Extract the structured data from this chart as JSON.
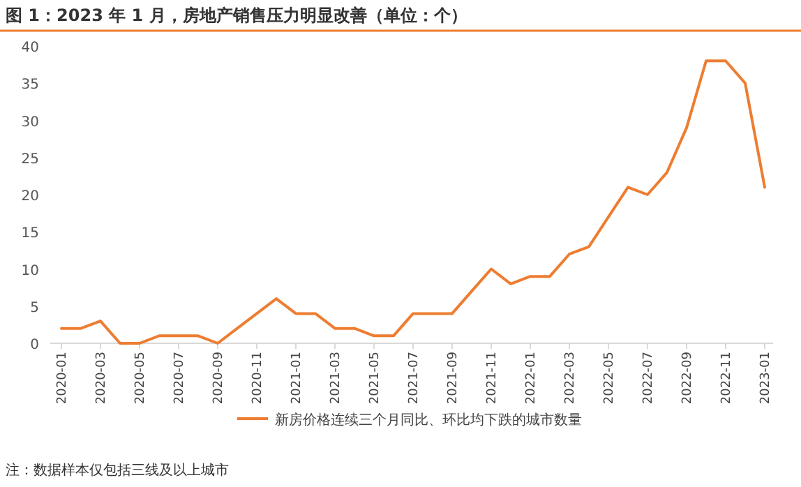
{
  "chart_data": {
    "type": "line",
    "title": "图 1：2023 年 1 月，房地产销售压力明显改善（单位：个）",
    "categories": [
      "2020-01",
      null,
      "2020-03",
      null,
      "2020-05",
      null,
      "2020-07",
      null,
      "2020-09",
      null,
      "2020-11",
      null,
      "2021-01",
      null,
      "2021-03",
      null,
      "2021-05",
      null,
      "2021-07",
      null,
      "2021-09",
      null,
      "2021-11",
      null,
      "2022-01",
      null,
      "2022-03",
      null,
      "2022-05",
      null,
      "2022-07",
      null,
      "2022-09",
      null,
      "2022-11",
      null,
      "2023-01"
    ],
    "series": [
      {
        "name": "新房价格连续三个月同比、环比均下跌的城市数量",
        "color": "#ed7d31",
        "values": [
          2,
          2,
          3,
          0,
          0,
          1,
          1,
          1,
          0,
          2,
          4,
          6,
          4,
          4,
          2,
          2,
          1,
          1,
          4,
          4,
          4,
          7,
          10,
          8,
          9,
          9,
          12,
          13,
          17,
          21,
          20,
          23,
          29,
          38,
          38,
          35,
          21
        ]
      }
    ],
    "ylim": [
      0,
      40
    ],
    "yticks": [
      0,
      5,
      10,
      15,
      20,
      25,
      30,
      35,
      40
    ],
    "legend": "bottom",
    "annotations": [
      "注：数据样本仅包括三线及以上城市"
    ]
  }
}
